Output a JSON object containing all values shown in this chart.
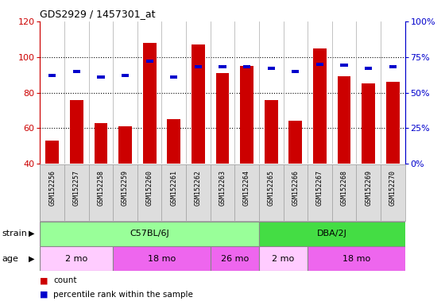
{
  "title": "GDS2929 / 1457301_at",
  "samples": [
    "GSM152256",
    "GSM152257",
    "GSM152258",
    "GSM152259",
    "GSM152260",
    "GSM152261",
    "GSM152262",
    "GSM152263",
    "GSM152264",
    "GSM152265",
    "GSM152266",
    "GSM152267",
    "GSM152268",
    "GSM152269",
    "GSM152270"
  ],
  "count_values": [
    53,
    76,
    63,
    61,
    108,
    65,
    107,
    91,
    95,
    76,
    64,
    105,
    89,
    85,
    86
  ],
  "percentile_values": [
    62,
    65,
    61,
    62,
    72,
    61,
    68,
    68,
    68,
    67,
    65,
    70,
    69,
    67,
    68
  ],
  "ylim_left": [
    40,
    120
  ],
  "ylim_right": [
    0,
    100
  ],
  "yticks_left": [
    40,
    60,
    80,
    100,
    120
  ],
  "yticks_right": [
    0,
    25,
    50,
    75,
    100
  ],
  "bar_bottom": 40,
  "count_color": "#cc0000",
  "percentile_color": "#0000cc",
  "strain_groups": [
    {
      "label": "C57BL/6J",
      "start": 0,
      "end": 9,
      "color": "#99ff99"
    },
    {
      "label": "DBA/2J",
      "start": 9,
      "end": 15,
      "color": "#44dd44"
    }
  ],
  "age_groups": [
    {
      "label": "2 mo",
      "start": 0,
      "end": 3,
      "color": "#ffccff"
    },
    {
      "label": "18 mo",
      "start": 3,
      "end": 7,
      "color": "#ee66ee"
    },
    {
      "label": "26 mo",
      "start": 7,
      "end": 9,
      "color": "#ee66ee"
    },
    {
      "label": "2 mo",
      "start": 9,
      "end": 11,
      "color": "#ffccff"
    },
    {
      "label": "18 mo",
      "start": 11,
      "end": 15,
      "color": "#ee66ee"
    }
  ],
  "strain_label": "strain",
  "age_label": "age",
  "legend_count_label": "count",
  "legend_pct_label": "percentile rank within the sample",
  "label_area_color": "#dddddd",
  "label_area_border": "#999999"
}
